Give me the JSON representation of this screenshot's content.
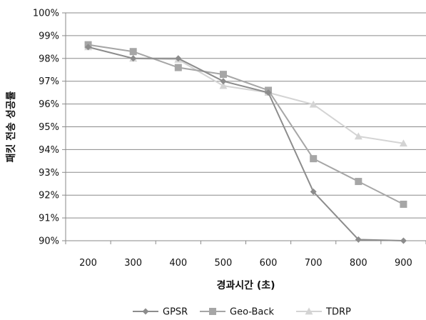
{
  "chart_data": {
    "type": "line",
    "title": "",
    "xlabel": "경과시간 (초)",
    "ylabel": "패킷 전송 성공률",
    "x": [
      200,
      300,
      400,
      500,
      600,
      700,
      800,
      900
    ],
    "x_tick_labels": [
      "200",
      "300",
      "400",
      "500",
      "600",
      "700",
      "800",
      "900"
    ],
    "y_tick_labels": [
      "90%",
      "91%",
      "92%",
      "93%",
      "94%",
      "95%",
      "96%",
      "97%",
      "98%",
      "99%",
      "100%"
    ],
    "ylim": [
      90,
      100
    ],
    "y_unit": "%",
    "grid": true,
    "legend_position": "bottom",
    "series": [
      {
        "name": "GPSR",
        "marker": "diamond",
        "color": "#8c8c8c",
        "values": [
          98.5,
          98.0,
          98.0,
          97.0,
          96.5,
          92.15,
          90.05,
          90.0
        ]
      },
      {
        "name": "Geo-Back",
        "marker": "square",
        "color": "#a6a6a6",
        "values": [
          98.6,
          98.3,
          97.6,
          97.3,
          96.6,
          93.6,
          92.6,
          91.6
        ]
      },
      {
        "name": "TDRP",
        "marker": "triangle",
        "color": "#d4d4d4",
        "values": [
          98.5,
          98.0,
          97.95,
          96.8,
          96.5,
          95.98,
          94.58,
          94.27
        ]
      }
    ]
  }
}
